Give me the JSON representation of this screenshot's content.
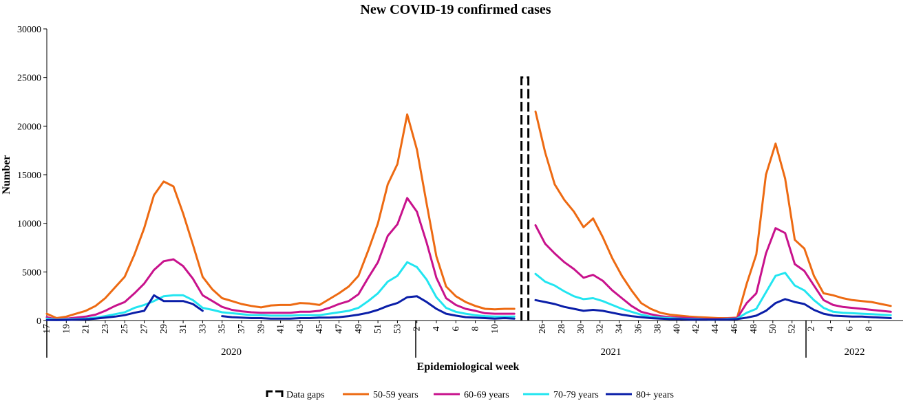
{
  "chart_data": {
    "type": "line",
    "title": "New COVID-19 confirmed cases",
    "xlabel": "Epidemiological week",
    "ylabel": "Number",
    "ylim": [
      0,
      30000
    ],
    "yticks": [
      0,
      5000,
      10000,
      15000,
      20000,
      25000,
      30000
    ],
    "week_labels": [
      "17",
      "19",
      "21",
      "23",
      "25",
      "27",
      "29",
      "31",
      "33",
      "35",
      "37",
      "39",
      "41",
      "43",
      "45",
      "47",
      "49",
      "51",
      "53",
      "2",
      "4",
      "6",
      "8",
      "10",
      "26",
      "28",
      "30",
      "32",
      "34",
      "36",
      "38",
      "40",
      "42",
      "44",
      "46",
      "48",
      "50",
      "52",
      "2",
      "4",
      "6",
      "8"
    ],
    "years": [
      {
        "label": "2020"
      },
      {
        "label": "2021"
      },
      {
        "label": "2022"
      }
    ],
    "data_gap": {
      "label": "Data gaps",
      "value": 25000
    },
    "segments": [
      {
        "name": "segment-1",
        "series": [
          {
            "name": "50-59 years",
            "color": "#ED6A12",
            "values": [
              700,
              250,
              400,
              700,
              1000,
              1500,
              2300,
              3400,
              4500,
              6800,
              9500,
              12900,
              14300,
              13800,
              11000,
              7800,
              4500,
              3200,
              2300,
              2000,
              1700,
              1500,
              1350,
              1550,
              1600,
              1600,
              1800,
              1750,
              1600,
              2200,
              2800,
              3500,
              4600,
              7200,
              10000,
              14000,
              16100,
              21200,
              17600,
              12000,
              6600,
              3500,
              2500,
              1900,
              1500,
              1200,
              1150,
              1200,
              1200
            ]
          },
          {
            "name": "60-69 years",
            "color": "#C8128C",
            "values": [
              350,
              100,
              200,
              300,
              400,
              600,
              1000,
              1500,
              1900,
              2800,
              3800,
              5200,
              6100,
              6300,
              5600,
              4300,
              2600,
              2000,
              1400,
              1100,
              950,
              850,
              800,
              800,
              800,
              800,
              900,
              900,
              1000,
              1300,
              1700,
              2000,
              2700,
              4400,
              6000,
              8700,
              9900,
              12600,
              11200,
              8000,
              4400,
              2300,
              1600,
              1200,
              1000,
              750,
              700,
              700,
              700
            ]
          },
          {
            "name": "70-79 years",
            "color": "#22E5F0",
            "values": [
              200,
              80,
              120,
              150,
              200,
              300,
              450,
              650,
              850,
              1300,
              1600,
              2000,
              2500,
              2600,
              2600,
              2100,
              1300,
              1100,
              850,
              750,
              650,
              550,
              550,
              500,
              500,
              500,
              550,
              550,
              550,
              700,
              850,
              1000,
              1300,
              2000,
              2800,
              4000,
              4600,
              6000,
              5500,
              4200,
              2400,
              1300,
              900,
              700,
              550,
              450,
              400,
              400,
              400
            ]
          },
          {
            "name": "80+ years",
            "color": "#0A1EA8",
            "values": [
              60,
              40,
              60,
              90,
              120,
              200,
              300,
              400,
              550,
              800,
              1000,
              2600,
              2000,
              2000,
              2000,
              1700,
              1000,
              null,
              450,
              350,
              300,
              250,
              250,
              200,
              200,
              200,
              250,
              250,
              300,
              300,
              350,
              450,
              600,
              800,
              1100,
              1500,
              1800,
              2400,
              2500,
              1900,
              1200,
              700,
              500,
              350,
              300,
              250,
              200,
              250,
              200
            ]
          }
        ]
      },
      {
        "name": "segment-2",
        "series": [
          {
            "name": "50-59 years",
            "color": "#ED6A12",
            "values": [
              21500,
              17300,
              14000,
              12400,
              11200,
              9600,
              10500,
              8600,
              6400,
              4600,
              3100,
              1800,
              1200,
              800,
              600,
              500,
              400,
              350,
              300,
              250,
              250,
              300,
              3800,
              6800,
              15000,
              18200,
              14600,
              8300,
              7400,
              4600,
              2800,
              2600,
              2300,
              2100,
              2000,
              1900,
              1700,
              1500
            ]
          },
          {
            "name": "60-69 years",
            "color": "#C8128C",
            "values": [
              9800,
              7900,
              6900,
              6000,
              5300,
              4400,
              4700,
              4100,
              3100,
              2300,
              1500,
              900,
              650,
              450,
              350,
              300,
              250,
              200,
              150,
              150,
              200,
              250,
              1800,
              2800,
              6900,
              9500,
              9000,
              5800,
              5100,
              3600,
              2100,
              1600,
              1400,
              1300,
              1200,
              1100,
              1000,
              900
            ]
          },
          {
            "name": "70-79 years",
            "color": "#22E5F0",
            "values": [
              4800,
              4000,
              3600,
              3000,
              2500,
              2200,
              2300,
              2000,
              1600,
              1200,
              900,
              600,
              400,
              300,
              250,
              200,
              150,
              150,
              100,
              100,
              150,
              200,
              800,
              1200,
              2900,
              4600,
              4900,
              3600,
              3100,
              2100,
              1300,
              900,
              800,
              750,
              700,
              650,
              600,
              550
            ]
          },
          {
            "name": "80+ years",
            "color": "#0A1EA8",
            "values": [
              2100,
              1900,
              1700,
              1400,
              1200,
              1000,
              1100,
              1000,
              800,
              600,
              450,
              350,
              250,
              200,
              150,
              150,
              100,
              100,
              100,
              100,
              100,
              150,
              300,
              500,
              1000,
              1800,
              2200,
              1900,
              1700,
              1100,
              700,
              500,
              450,
              400,
              400,
              350,
              300,
              250
            ]
          }
        ]
      }
    ],
    "legend": [
      {
        "label": "Data gaps",
        "kind": "gap"
      },
      {
        "label": "50-59 years",
        "color": "#ED6A12"
      },
      {
        "label": "60-69 years",
        "color": "#C8128C"
      },
      {
        "label": "70-79 years",
        "color": "#22E5F0"
      },
      {
        "label": "80+ years",
        "color": "#0A1EA8"
      }
    ]
  }
}
